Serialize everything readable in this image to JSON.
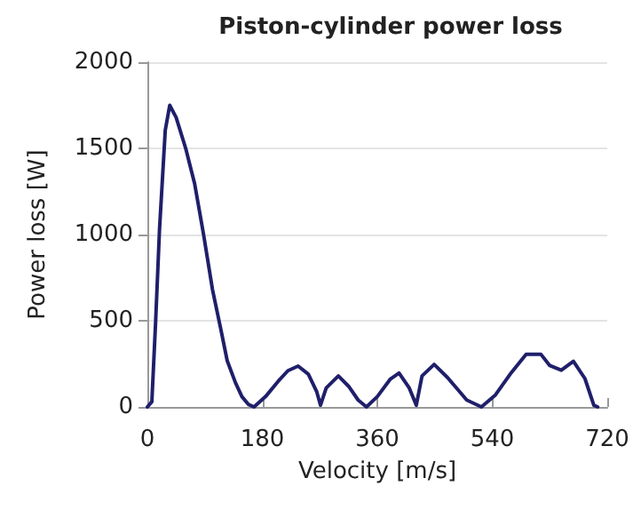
{
  "chart_data": {
    "type": "line",
    "title": "Piston-cylinder power loss",
    "xlabel": "Velocity [m/s]",
    "ylabel": "Power loss [W]",
    "xlim": [
      0,
      720
    ],
    "xticks": [
      0,
      180,
      360,
      540,
      720
    ],
    "ylim": [
      0,
      2000
    ],
    "yticks": [
      0,
      500,
      1000,
      1500,
      2000
    ],
    "grid": "y",
    "marker": "none",
    "line_style": "solid",
    "series": [
      {
        "color": "#1f1f6b",
        "x": [
          0,
          7,
          13,
          19,
          28,
          35,
          45,
          60,
          74,
          88,
          102,
          115,
          125,
          138,
          148,
          158,
          167,
          185,
          205,
          220,
          236,
          252,
          265,
          271,
          280,
          299,
          315,
          330,
          343,
          360,
          380,
          394,
          410,
          421,
          430,
          449,
          470,
          500,
          523,
          545,
          570,
          593,
          616,
          630,
          648,
          667,
          685,
          699,
          705
        ],
        "values": [
          0,
          30,
          500,
          1030,
          1605,
          1750,
          1680,
          1500,
          1295,
          1000,
          680,
          450,
          268,
          140,
          60,
          15,
          0,
          60,
          150,
          210,
          237,
          190,
          90,
          10,
          110,
          180,
          120,
          40,
          0,
          60,
          160,
          196,
          110,
          10,
          180,
          247,
          170,
          40,
          0,
          70,
          200,
          306,
          306,
          240,
          213,
          265,
          165,
          10,
          0
        ]
      }
    ]
  }
}
